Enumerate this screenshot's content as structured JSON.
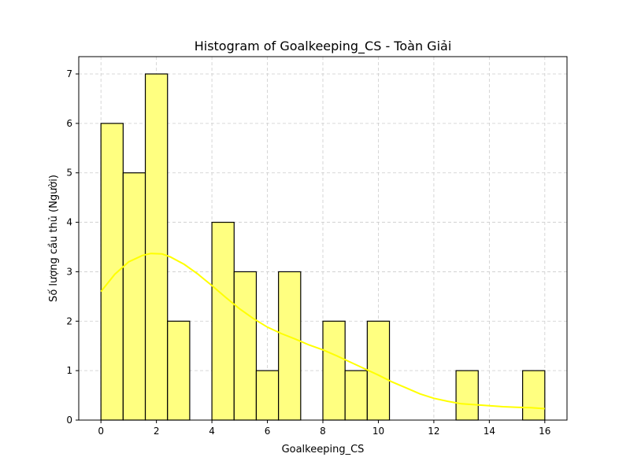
{
  "chart_data": {
    "type": "bar",
    "title": "Histogram of Goalkeeping_CS - Toàn Giải",
    "xlabel": "Goalkeeping_CS",
    "ylabel": "Số lượng cầu thủ (Người)",
    "xlim": [
      -0.8,
      16.8
    ],
    "ylim": [
      0,
      7.35
    ],
    "xticks": [
      0,
      2,
      4,
      6,
      8,
      10,
      12,
      14,
      16
    ],
    "yticks": [
      0,
      1,
      2,
      3,
      4,
      5,
      6,
      7
    ],
    "grid": true,
    "bin_width": 0.8,
    "bins": [
      {
        "start": 0.0,
        "end": 0.8,
        "count": 6
      },
      {
        "start": 0.8,
        "end": 1.6,
        "count": 5
      },
      {
        "start": 1.6,
        "end": 2.4,
        "count": 7
      },
      {
        "start": 2.4,
        "end": 3.2,
        "count": 2
      },
      {
        "start": 3.2,
        "end": 4.0,
        "count": 0
      },
      {
        "start": 4.0,
        "end": 4.8,
        "count": 4
      },
      {
        "start": 4.8,
        "end": 5.6,
        "count": 3
      },
      {
        "start": 5.6,
        "end": 6.4,
        "count": 1
      },
      {
        "start": 6.4,
        "end": 7.2,
        "count": 3
      },
      {
        "start": 7.2,
        "end": 8.0,
        "count": 0
      },
      {
        "start": 8.0,
        "end": 8.8,
        "count": 2
      },
      {
        "start": 8.8,
        "end": 9.6,
        "count": 1
      },
      {
        "start": 9.6,
        "end": 10.4,
        "count": 2
      },
      {
        "start": 10.4,
        "end": 11.2,
        "count": 0
      },
      {
        "start": 11.2,
        "end": 12.0,
        "count": 0
      },
      {
        "start": 12.0,
        "end": 12.8,
        "count": 0
      },
      {
        "start": 12.8,
        "end": 13.6,
        "count": 1
      },
      {
        "start": 13.6,
        "end": 14.4,
        "count": 0
      },
      {
        "start": 14.4,
        "end": 15.2,
        "count": 0
      },
      {
        "start": 15.2,
        "end": 16.0,
        "count": 1
      }
    ],
    "kde": {
      "x": [
        0,
        0.5,
        1,
        1.5,
        1.8,
        2.2,
        2.5,
        3,
        3.5,
        4,
        4.5,
        5,
        5.5,
        6,
        6.5,
        7,
        7.5,
        8,
        8.5,
        9,
        9.5,
        10,
        10.5,
        11,
        11.5,
        12,
        12.5,
        13,
        13.5,
        14,
        14.5,
        15,
        15.5,
        16
      ],
      "y": [
        2.6,
        2.95,
        3.2,
        3.33,
        3.37,
        3.36,
        3.3,
        3.15,
        2.95,
        2.72,
        2.48,
        2.25,
        2.05,
        1.88,
        1.75,
        1.64,
        1.52,
        1.42,
        1.3,
        1.17,
        1.04,
        0.91,
        0.77,
        0.65,
        0.53,
        0.44,
        0.38,
        0.33,
        0.31,
        0.29,
        0.27,
        0.26,
        0.25,
        0.23
      ]
    },
    "colors": {
      "bar_fill": "#ffff80",
      "bar_edge": "#000000",
      "kde_line": "#ffff00",
      "grid": "#cccccc"
    }
  }
}
